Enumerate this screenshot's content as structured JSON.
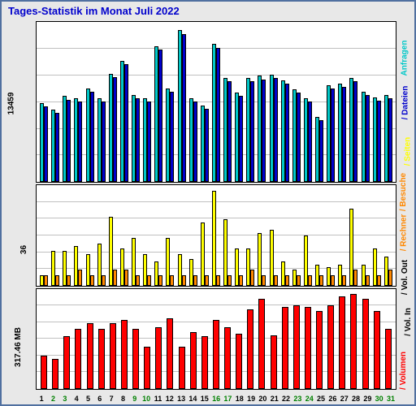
{
  "title": "Tages-Statistik im Monat Juli 2022",
  "border_color": "#5070a0",
  "panel_bg": "#ffffff",
  "outer_bg": "#e8e8e8",
  "grid_color": "#c0c0c0",
  "grid_lines": 5,
  "days": 31,
  "top_panel": {
    "y_label": "13459",
    "ymax": 13459,
    "series": [
      {
        "color": "#00c8c8",
        "name": "Anfragen",
        "values": [
          7000,
          6400,
          7600,
          7400,
          8300,
          7400,
          9600,
          10700,
          7700,
          7400,
          12000,
          8300,
          13459,
          7400,
          6800,
          12200,
          9200,
          7900,
          9200,
          9400,
          9500,
          9000,
          8200,
          7400,
          5800,
          8600,
          8700,
          9200,
          8000,
          7500,
          7700
        ]
      },
      {
        "color": "#0000cc",
        "name": "Dateien",
        "values": [
          6700,
          6100,
          7300,
          7100,
          8000,
          7100,
          9300,
          10400,
          7400,
          7100,
          11700,
          8000,
          13100,
          7100,
          6500,
          11900,
          8900,
          7600,
          8900,
          9100,
          9200,
          8700,
          7900,
          7100,
          5500,
          8300,
          8400,
          8900,
          7700,
          7200,
          7400
        ]
      }
    ]
  },
  "mid_panel": {
    "y_label": "36",
    "ymax": 36,
    "series": [
      {
        "color": "#ffff00",
        "name": "Seiten",
        "values": [
          4,
          13,
          13,
          15,
          12,
          16,
          26,
          14,
          18,
          12,
          9,
          18,
          12,
          10,
          24,
          36,
          25,
          14,
          14,
          20,
          21,
          9,
          6,
          19,
          8,
          7,
          8,
          29,
          8,
          14,
          11
        ]
      },
      {
        "color": "#ff8800",
        "name": "Besuche",
        "values": [
          4,
          4,
          4,
          6,
          4,
          4,
          6,
          6,
          4,
          4,
          4,
          4,
          4,
          4,
          4,
          4,
          4,
          4,
          6,
          4,
          4,
          4,
          4,
          4,
          4,
          4,
          4,
          6,
          4,
          4,
          6
        ]
      }
    ]
  },
  "bot_panel": {
    "y_label": "317.46 MB",
    "ymax": 317.46,
    "series": [
      {
        "color": "#ff0000",
        "name": "Volumen",
        "values": [
          110,
          100,
          175,
          200,
          220,
          200,
          220,
          230,
          200,
          140,
          205,
          235,
          140,
          190,
          175,
          230,
          205,
          185,
          265,
          300,
          180,
          275,
          280,
          275,
          260,
          280,
          310,
          318,
          300,
          260,
          200
        ]
      }
    ]
  },
  "x_labels": [
    "1",
    "2",
    "3",
    "4",
    "5",
    "6",
    "7",
    "8",
    "9",
    "10",
    "11",
    "12",
    "13",
    "14",
    "15",
    "16",
    "17",
    "18",
    "19",
    "20",
    "21",
    "22",
    "23",
    "24",
    "25",
    "26",
    "27",
    "28",
    "29",
    "30",
    "31"
  ],
  "x_colors": [
    "#000",
    "#008000",
    "#008000",
    "#000",
    "#000",
    "#000",
    "#000",
    "#000",
    "#008000",
    "#008000",
    "#000",
    "#000",
    "#000",
    "#000",
    "#000",
    "#008000",
    "#008000",
    "#000",
    "#000",
    "#000",
    "#000",
    "#000",
    "#008000",
    "#008000",
    "#000",
    "#000",
    "#000",
    "#000",
    "#000",
    "#008000",
    "#008000"
  ],
  "legend": [
    {
      "label": "Anfragen",
      "color": "#00c8c8"
    },
    {
      "label": "Dateien",
      "color": "#0000cc"
    },
    {
      "label": "Seiten",
      "color": "#ffff00"
    },
    {
      "label": "Besuche",
      "color": "#ff8800"
    },
    {
      "label": "Rechner",
      "color": "#ff8800"
    },
    {
      "label": "Vol. Out",
      "color": "#000000"
    },
    {
      "label": "Vol. In",
      "color": "#000000"
    },
    {
      "label": "Volumen",
      "color": "#ff0000"
    }
  ]
}
